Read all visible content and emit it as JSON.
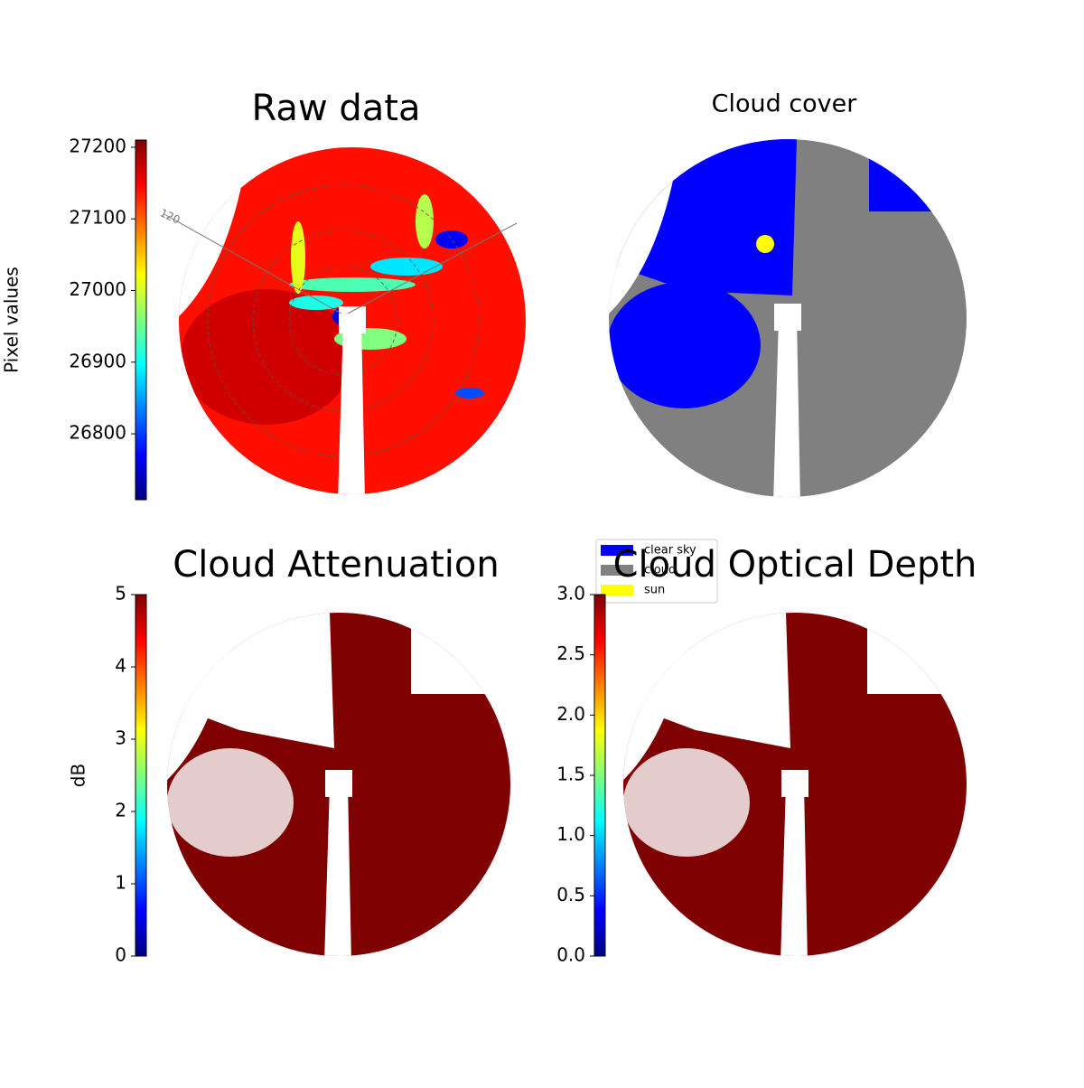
{
  "chart_data": [
    {
      "type": "image",
      "title": "Raw data",
      "colorbar_label": "Pixel values",
      "colormap": "jet",
      "clim": [
        26708,
        27210
      ],
      "cticks": [
        26800,
        26900,
        27000,
        27100,
        27200
      ],
      "annotations": [
        "120"
      ]
    },
    {
      "type": "classified",
      "title": "Cloud cover",
      "legend": [
        {
          "name": "clear sky",
          "color": "#0000ff"
        },
        {
          "name": "cloud",
          "color": "#808080"
        },
        {
          "name": "sun",
          "color": "#ffff00"
        }
      ]
    },
    {
      "type": "image",
      "title": "Cloud Attenuation",
      "colorbar_label": "dB",
      "colormap": "jet",
      "clim": [
        0,
        5
      ],
      "cticks": [
        0,
        1,
        2,
        3,
        4,
        5
      ]
    },
    {
      "type": "image",
      "title": "Cloud Optical Depth",
      "colormap": "jet",
      "clim": [
        0,
        3
      ],
      "cticks": [
        {
          "value": 0,
          "label": "0.0"
        },
        0.5,
        {
          "value": 1,
          "label": "1.0"
        },
        1.5,
        {
          "value": 2,
          "label": "2.0"
        },
        2.5,
        {
          "value": 3,
          "label": "3.0"
        }
      ]
    }
  ]
}
